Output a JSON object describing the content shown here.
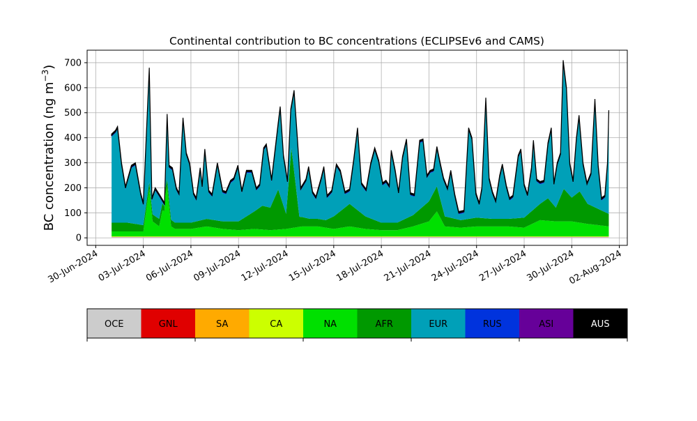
{
  "chart_data": {
    "type": "area",
    "stacked": true,
    "title": "Continental contribution to BC concentrations (ECLIPSEv6 and CAMS)",
    "ylabel_main": "BC concentration (ng m",
    "ylabel_sup": "−3",
    "ylabel_close": ")",
    "ylim": [
      -30,
      750
    ],
    "yticks": [
      0,
      100,
      200,
      300,
      400,
      500,
      600,
      700
    ],
    "x_start": "2024-07-01",
    "x_end": "2024-08-01",
    "xlim": [
      "2024-06-29T11:00",
      "2024-08-02T12:00"
    ],
    "xticks": [
      "30-Jun-2024",
      "03-Jul-2024",
      "06-Jul-2024",
      "09-Jul-2024",
      "12-Jul-2024",
      "15-Jul-2024",
      "18-Jul-2024",
      "21-Jul-2024",
      "24-Jul-2024",
      "27-Jul-2024",
      "30-Jul-2024",
      "02-Aug-2024"
    ],
    "grid": true,
    "regions": [
      "OCE",
      "GNL",
      "SA",
      "CA",
      "NA",
      "AFR",
      "EUR",
      "RUS",
      "ASI",
      "AUS"
    ],
    "colors": [
      "#cccccc",
      "#e00000",
      "#ffaa00",
      "#ccff00",
      "#00e000",
      "#009900",
      "#00a0b8",
      "#0033dd",
      "#660099",
      "#000000"
    ],
    "total_points": [
      [
        "2024-07-01T00",
        415
      ],
      [
        "2024-07-01T06",
        430
      ],
      [
        "2024-07-01T09",
        445
      ],
      [
        "2024-07-01T15",
        300
      ],
      [
        "2024-07-01T21",
        205
      ],
      [
        "2024-07-02T06",
        290
      ],
      [
        "2024-07-02T12",
        300
      ],
      [
        "2024-07-02T20",
        180
      ],
      [
        "2024-07-03T00",
        140
      ],
      [
        "2024-07-03T09",
        680
      ],
      [
        "2024-07-03T13",
        160
      ],
      [
        "2024-07-03T18",
        200
      ],
      [
        "2024-07-04T00",
        175
      ],
      [
        "2024-07-04T08",
        140
      ],
      [
        "2024-07-04T12",
        495
      ],
      [
        "2024-07-04T15",
        290
      ],
      [
        "2024-07-04T20",
        280
      ],
      [
        "2024-07-05T02",
        200
      ],
      [
        "2024-07-05T06",
        180
      ],
      [
        "2024-07-05T12",
        480
      ],
      [
        "2024-07-05T17",
        340
      ],
      [
        "2024-07-05T22",
        300
      ],
      [
        "2024-07-06T04",
        180
      ],
      [
        "2024-07-06T08",
        160
      ],
      [
        "2024-07-06T14",
        280
      ],
      [
        "2024-07-06T17",
        210
      ],
      [
        "2024-07-06T21",
        355
      ],
      [
        "2024-07-07T03",
        190
      ],
      [
        "2024-07-07T08",
        175
      ],
      [
        "2024-07-07T16",
        300
      ],
      [
        "2024-07-08T00",
        190
      ],
      [
        "2024-07-08T05",
        185
      ],
      [
        "2024-07-08T12",
        230
      ],
      [
        "2024-07-08T17",
        240
      ],
      [
        "2024-07-08T23",
        290
      ],
      [
        "2024-07-09T05",
        190
      ],
      [
        "2024-07-09T12",
        270
      ],
      [
        "2024-07-09T20",
        270
      ],
      [
        "2024-07-10T03",
        200
      ],
      [
        "2024-07-10T08",
        215
      ],
      [
        "2024-07-10T14",
        360
      ],
      [
        "2024-07-10T18",
        375
      ],
      [
        "2024-07-11T02",
        235
      ],
      [
        "2024-07-11T12",
        460
      ],
      [
        "2024-07-11T15",
        525
      ],
      [
        "2024-07-11T20",
        330
      ],
      [
        "2024-07-12T02",
        230
      ],
      [
        "2024-07-12T07",
        515
      ],
      [
        "2024-07-12T12",
        590
      ],
      [
        "2024-07-12T17",
        400
      ],
      [
        "2024-07-12T22",
        200
      ],
      [
        "2024-07-13T06",
        235
      ],
      [
        "2024-07-13T10",
        285
      ],
      [
        "2024-07-13T16",
        185
      ],
      [
        "2024-07-13T21",
        165
      ],
      [
        "2024-07-14T05",
        240
      ],
      [
        "2024-07-14T09",
        285
      ],
      [
        "2024-07-14T14",
        170
      ],
      [
        "2024-07-14T21",
        190
      ],
      [
        "2024-07-15T04",
        295
      ],
      [
        "2024-07-15T10",
        270
      ],
      [
        "2024-07-15T17",
        185
      ],
      [
        "2024-07-16T00",
        195
      ],
      [
        "2024-07-16T06",
        310
      ],
      [
        "2024-07-16T12",
        440
      ],
      [
        "2024-07-16T18",
        220
      ],
      [
        "2024-07-17T01",
        195
      ],
      [
        "2024-07-17T08",
        300
      ],
      [
        "2024-07-17T14",
        360
      ],
      [
        "2024-07-17T20",
        310
      ],
      [
        "2024-07-18T02",
        220
      ],
      [
        "2024-07-18T07",
        230
      ],
      [
        "2024-07-18T12",
        210
      ],
      [
        "2024-07-18T15",
        350
      ],
      [
        "2024-07-18T21",
        270
      ],
      [
        "2024-07-19T02",
        185
      ],
      [
        "2024-07-19T08",
        325
      ],
      [
        "2024-07-19T14",
        395
      ],
      [
        "2024-07-19T20",
        180
      ],
      [
        "2024-07-20T02",
        175
      ],
      [
        "2024-07-20T10",
        390
      ],
      [
        "2024-07-20T15",
        395
      ],
      [
        "2024-07-20T21",
        250
      ],
      [
        "2024-07-21T02",
        270
      ],
      [
        "2024-07-21T07",
        275
      ],
      [
        "2024-07-21T12",
        365
      ],
      [
        "2024-07-21T17",
        300
      ],
      [
        "2024-07-21T22",
        240
      ],
      [
        "2024-07-22T04",
        200
      ],
      [
        "2024-07-22T09",
        270
      ],
      [
        "2024-07-22T15",
        175
      ],
      [
        "2024-07-22T21",
        105
      ],
      [
        "2024-07-23T05",
        110
      ],
      [
        "2024-07-23T12",
        440
      ],
      [
        "2024-07-23T17",
        400
      ],
      [
        "2024-07-23T23",
        180
      ],
      [
        "2024-07-24T04",
        140
      ],
      [
        "2024-07-24T08",
        200
      ],
      [
        "2024-07-24T14",
        560
      ],
      [
        "2024-07-24T19",
        240
      ],
      [
        "2024-07-25T00",
        185
      ],
      [
        "2024-07-25T05",
        150
      ],
      [
        "2024-07-25T11",
        250
      ],
      [
        "2024-07-25T15",
        295
      ],
      [
        "2024-07-25T21",
        210
      ],
      [
        "2024-07-26T02",
        160
      ],
      [
        "2024-07-26T07",
        170
      ],
      [
        "2024-07-26T15",
        330
      ],
      [
        "2024-07-26T19",
        355
      ],
      [
        "2024-07-27T00",
        215
      ],
      [
        "2024-07-27T05",
        175
      ],
      [
        "2024-07-27T11",
        280
      ],
      [
        "2024-07-27T14",
        390
      ],
      [
        "2024-07-27T19",
        235
      ],
      [
        "2024-07-28T00",
        225
      ],
      [
        "2024-07-28T06",
        230
      ],
      [
        "2024-07-28T12",
        380
      ],
      [
        "2024-07-28T17",
        440
      ],
      [
        "2024-07-28T21",
        220
      ],
      [
        "2024-07-29T02",
        300
      ],
      [
        "2024-07-29T07",
        340
      ],
      [
        "2024-07-29T11",
        710
      ],
      [
        "2024-07-29T16",
        600
      ],
      [
        "2024-07-29T21",
        300
      ],
      [
        "2024-07-30T02",
        230
      ],
      [
        "2024-07-30T07",
        400
      ],
      [
        "2024-07-30T11",
        490
      ],
      [
        "2024-07-30T17",
        300
      ],
      [
        "2024-07-30T23",
        220
      ],
      [
        "2024-07-31T05",
        260
      ],
      [
        "2024-07-31T11",
        555
      ],
      [
        "2024-07-31T16",
        290
      ],
      [
        "2024-07-31T21",
        160
      ],
      [
        "2024-08-01T02",
        170
      ],
      [
        "2024-08-01T06",
        300
      ],
      [
        "2024-08-01T08",
        510
      ]
    ],
    "afr_points": [
      [
        "2024-07-01T00",
        35
      ],
      [
        "2024-07-02T00",
        35
      ],
      [
        "2024-07-03T00",
        25
      ],
      [
        "2024-07-04T00",
        30
      ],
      [
        "2024-07-05T00",
        25
      ],
      [
        "2024-07-06T00",
        25
      ],
      [
        "2024-07-07T00",
        30
      ],
      [
        "2024-07-08T00",
        30
      ],
      [
        "2024-07-09T00",
        35
      ],
      [
        "2024-07-10T00",
        70
      ],
      [
        "2024-07-10T12",
        95
      ],
      [
        "2024-07-11T00",
        90
      ],
      [
        "2024-07-11T12",
        160
      ],
      [
        "2024-07-12T00",
        60
      ],
      [
        "2024-07-12T08",
        320
      ],
      [
        "2024-07-12T20",
        40
      ],
      [
        "2024-07-13T12",
        30
      ],
      [
        "2024-07-14T12",
        30
      ],
      [
        "2024-07-15T00",
        50
      ],
      [
        "2024-07-16T00",
        90
      ],
      [
        "2024-07-17T00",
        50
      ],
      [
        "2024-07-18T00",
        30
      ],
      [
        "2024-07-19T00",
        30
      ],
      [
        "2024-07-20T00",
        45
      ],
      [
        "2024-07-21T00",
        80
      ],
      [
        "2024-07-21T12",
        100
      ],
      [
        "2024-07-22T00",
        40
      ],
      [
        "2024-07-23T00",
        30
      ],
      [
        "2024-07-24T00",
        35
      ],
      [
        "2024-07-25T00",
        30
      ],
      [
        "2024-07-26T00",
        30
      ],
      [
        "2024-07-27T00",
        40
      ],
      [
        "2024-07-28T00",
        65
      ],
      [
        "2024-07-28T12",
        90
      ],
      [
        "2024-07-29T00",
        55
      ],
      [
        "2024-07-29T12",
        130
      ],
      [
        "2024-07-30T00",
        95
      ],
      [
        "2024-07-30T12",
        125
      ],
      [
        "2024-07-31T00",
        80
      ],
      [
        "2024-08-01T08",
        50
      ]
    ],
    "na_points": [
      [
        "2024-07-01T00",
        20
      ],
      [
        "2024-07-02T00",
        20
      ],
      [
        "2024-07-03T00",
        20
      ],
      [
        "2024-07-03T09",
        190
      ],
      [
        "2024-07-03T14",
        60
      ],
      [
        "2024-07-04T00",
        40
      ],
      [
        "2024-07-04T12",
        200
      ],
      [
        "2024-07-04T18",
        40
      ],
      [
        "2024-07-05T00",
        30
      ],
      [
        "2024-07-06T00",
        30
      ],
      [
        "2024-07-07T00",
        40
      ],
      [
        "2024-07-08T00",
        30
      ],
      [
        "2024-07-09T00",
        25
      ],
      [
        "2024-07-10T00",
        30
      ],
      [
        "2024-07-11T00",
        25
      ],
      [
        "2024-07-12T00",
        30
      ],
      [
        "2024-07-13T00",
        40
      ],
      [
        "2024-07-14T00",
        40
      ],
      [
        "2024-07-15T00",
        30
      ],
      [
        "2024-07-16T00",
        40
      ],
      [
        "2024-07-17T00",
        30
      ],
      [
        "2024-07-18T00",
        25
      ],
      [
        "2024-07-19T00",
        25
      ],
      [
        "2024-07-20T00",
        40
      ],
      [
        "2024-07-21T00",
        60
      ],
      [
        "2024-07-21T12",
        100
      ],
      [
        "2024-07-22T00",
        40
      ],
      [
        "2024-07-23T00",
        35
      ],
      [
        "2024-07-24T00",
        40
      ],
      [
        "2024-07-25T00",
        40
      ],
      [
        "2024-07-26T00",
        40
      ],
      [
        "2024-07-27T00",
        35
      ],
      [
        "2024-07-28T00",
        65
      ],
      [
        "2024-07-29T00",
        60
      ],
      [
        "2024-07-30T00",
        60
      ],
      [
        "2024-07-31T00",
        50
      ],
      [
        "2024-08-01T08",
        40
      ]
    ]
  },
  "legend": [
    "OCE",
    "GNL",
    "SA",
    "CA",
    "NA",
    "AFR",
    "EUR",
    "RUS",
    "ASI",
    "AUS"
  ]
}
